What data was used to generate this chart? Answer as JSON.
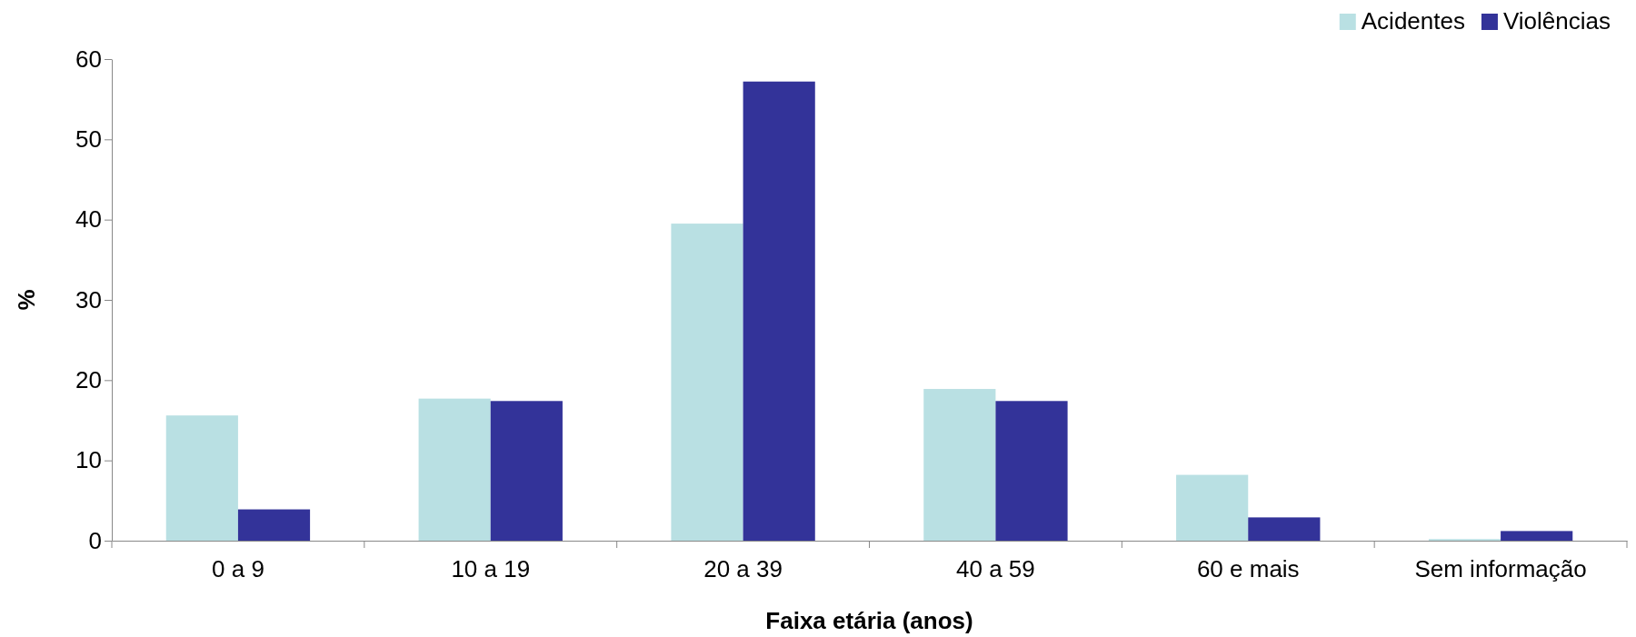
{
  "chart_data": {
    "type": "bar",
    "xlabel": "Faixa etária (anos)",
    "ylabel": "%",
    "categories": [
      "0 a 9",
      "10 a 19",
      "20 a 39",
      "40 a 59",
      "60 e mais",
      "Sem informação"
    ],
    "series": [
      {
        "name": "Acidentes",
        "color": "#b9e0e3",
        "values": [
          15.6,
          17.7,
          39.5,
          18.9,
          8.2,
          0.2
        ]
      },
      {
        "name": "Violências",
        "color": "#333399",
        "values": [
          3.9,
          17.4,
          57.2,
          17.4,
          2.9,
          1.2
        ]
      }
    ],
    "ylim": [
      0,
      60
    ],
    "yticks": [
      0,
      10,
      20,
      30,
      40,
      50,
      60
    ],
    "grid": false,
    "legend": "top right"
  }
}
